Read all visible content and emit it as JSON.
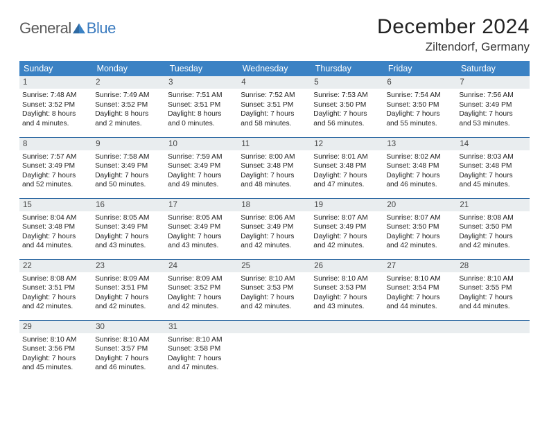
{
  "logo": {
    "general": "General",
    "blue": "Blue"
  },
  "title": "December 2024",
  "location": "Ziltendorf, Germany",
  "colors": {
    "header_bg": "#3b82c4",
    "header_text": "#ffffff",
    "daynum_bg": "#e9edef",
    "row_border": "#2f6aa3",
    "logo_grey": "#5a5a5a",
    "logo_blue": "#3b7bbf"
  },
  "weekdays": [
    "Sunday",
    "Monday",
    "Tuesday",
    "Wednesday",
    "Thursday",
    "Friday",
    "Saturday"
  ],
  "cells": [
    {
      "n": "1",
      "sr": "Sunrise: 7:48 AM",
      "ss": "Sunset: 3:52 PM",
      "dl": "Daylight: 8 hours and 4 minutes."
    },
    {
      "n": "2",
      "sr": "Sunrise: 7:49 AM",
      "ss": "Sunset: 3:52 PM",
      "dl": "Daylight: 8 hours and 2 minutes."
    },
    {
      "n": "3",
      "sr": "Sunrise: 7:51 AM",
      "ss": "Sunset: 3:51 PM",
      "dl": "Daylight: 8 hours and 0 minutes."
    },
    {
      "n": "4",
      "sr": "Sunrise: 7:52 AM",
      "ss": "Sunset: 3:51 PM",
      "dl": "Daylight: 7 hours and 58 minutes."
    },
    {
      "n": "5",
      "sr": "Sunrise: 7:53 AM",
      "ss": "Sunset: 3:50 PM",
      "dl": "Daylight: 7 hours and 56 minutes."
    },
    {
      "n": "6",
      "sr": "Sunrise: 7:54 AM",
      "ss": "Sunset: 3:50 PM",
      "dl": "Daylight: 7 hours and 55 minutes."
    },
    {
      "n": "7",
      "sr": "Sunrise: 7:56 AM",
      "ss": "Sunset: 3:49 PM",
      "dl": "Daylight: 7 hours and 53 minutes."
    },
    {
      "n": "8",
      "sr": "Sunrise: 7:57 AM",
      "ss": "Sunset: 3:49 PM",
      "dl": "Daylight: 7 hours and 52 minutes."
    },
    {
      "n": "9",
      "sr": "Sunrise: 7:58 AM",
      "ss": "Sunset: 3:49 PM",
      "dl": "Daylight: 7 hours and 50 minutes."
    },
    {
      "n": "10",
      "sr": "Sunrise: 7:59 AM",
      "ss": "Sunset: 3:49 PM",
      "dl": "Daylight: 7 hours and 49 minutes."
    },
    {
      "n": "11",
      "sr": "Sunrise: 8:00 AM",
      "ss": "Sunset: 3:48 PM",
      "dl": "Daylight: 7 hours and 48 minutes."
    },
    {
      "n": "12",
      "sr": "Sunrise: 8:01 AM",
      "ss": "Sunset: 3:48 PM",
      "dl": "Daylight: 7 hours and 47 minutes."
    },
    {
      "n": "13",
      "sr": "Sunrise: 8:02 AM",
      "ss": "Sunset: 3:48 PM",
      "dl": "Daylight: 7 hours and 46 minutes."
    },
    {
      "n": "14",
      "sr": "Sunrise: 8:03 AM",
      "ss": "Sunset: 3:48 PM",
      "dl": "Daylight: 7 hours and 45 minutes."
    },
    {
      "n": "15",
      "sr": "Sunrise: 8:04 AM",
      "ss": "Sunset: 3:48 PM",
      "dl": "Daylight: 7 hours and 44 minutes."
    },
    {
      "n": "16",
      "sr": "Sunrise: 8:05 AM",
      "ss": "Sunset: 3:49 PM",
      "dl": "Daylight: 7 hours and 43 minutes."
    },
    {
      "n": "17",
      "sr": "Sunrise: 8:05 AM",
      "ss": "Sunset: 3:49 PM",
      "dl": "Daylight: 7 hours and 43 minutes."
    },
    {
      "n": "18",
      "sr": "Sunrise: 8:06 AM",
      "ss": "Sunset: 3:49 PM",
      "dl": "Daylight: 7 hours and 42 minutes."
    },
    {
      "n": "19",
      "sr": "Sunrise: 8:07 AM",
      "ss": "Sunset: 3:49 PM",
      "dl": "Daylight: 7 hours and 42 minutes."
    },
    {
      "n": "20",
      "sr": "Sunrise: 8:07 AM",
      "ss": "Sunset: 3:50 PM",
      "dl": "Daylight: 7 hours and 42 minutes."
    },
    {
      "n": "21",
      "sr": "Sunrise: 8:08 AM",
      "ss": "Sunset: 3:50 PM",
      "dl": "Daylight: 7 hours and 42 minutes."
    },
    {
      "n": "22",
      "sr": "Sunrise: 8:08 AM",
      "ss": "Sunset: 3:51 PM",
      "dl": "Daylight: 7 hours and 42 minutes."
    },
    {
      "n": "23",
      "sr": "Sunrise: 8:09 AM",
      "ss": "Sunset: 3:51 PM",
      "dl": "Daylight: 7 hours and 42 minutes."
    },
    {
      "n": "24",
      "sr": "Sunrise: 8:09 AM",
      "ss": "Sunset: 3:52 PM",
      "dl": "Daylight: 7 hours and 42 minutes."
    },
    {
      "n": "25",
      "sr": "Sunrise: 8:10 AM",
      "ss": "Sunset: 3:53 PM",
      "dl": "Daylight: 7 hours and 42 minutes."
    },
    {
      "n": "26",
      "sr": "Sunrise: 8:10 AM",
      "ss": "Sunset: 3:53 PM",
      "dl": "Daylight: 7 hours and 43 minutes."
    },
    {
      "n": "27",
      "sr": "Sunrise: 8:10 AM",
      "ss": "Sunset: 3:54 PM",
      "dl": "Daylight: 7 hours and 44 minutes."
    },
    {
      "n": "28",
      "sr": "Sunrise: 8:10 AM",
      "ss": "Sunset: 3:55 PM",
      "dl": "Daylight: 7 hours and 44 minutes."
    },
    {
      "n": "29",
      "sr": "Sunrise: 8:10 AM",
      "ss": "Sunset: 3:56 PM",
      "dl": "Daylight: 7 hours and 45 minutes."
    },
    {
      "n": "30",
      "sr": "Sunrise: 8:10 AM",
      "ss": "Sunset: 3:57 PM",
      "dl": "Daylight: 7 hours and 46 minutes."
    },
    {
      "n": "31",
      "sr": "Sunrise: 8:10 AM",
      "ss": "Sunset: 3:58 PM",
      "dl": "Daylight: 7 hours and 47 minutes."
    },
    {
      "n": "",
      "sr": "",
      "ss": "",
      "dl": "",
      "empty": true
    },
    {
      "n": "",
      "sr": "",
      "ss": "",
      "dl": "",
      "empty": true
    },
    {
      "n": "",
      "sr": "",
      "ss": "",
      "dl": "",
      "empty": true
    },
    {
      "n": "",
      "sr": "",
      "ss": "",
      "dl": "",
      "empty": true
    }
  ]
}
